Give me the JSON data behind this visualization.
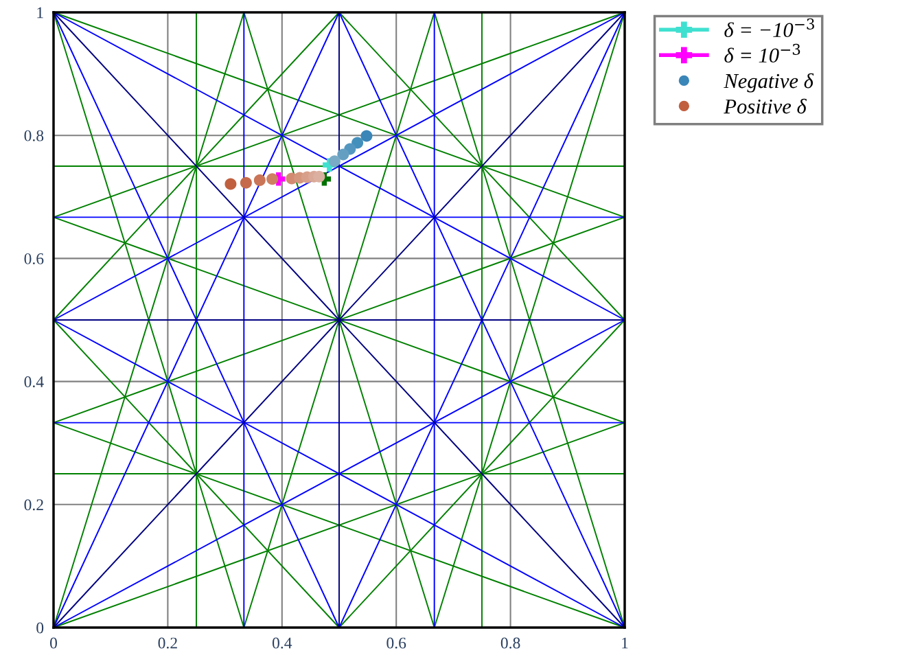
{
  "chart_data": {
    "type": "line",
    "xlim": [
      0,
      1
    ],
    "ylim": [
      0,
      1
    ],
    "xticks": [
      0,
      0.2,
      0.4,
      0.6,
      0.8,
      1
    ],
    "yticks": [
      0,
      0.2,
      0.4,
      0.6,
      0.8,
      1
    ],
    "grid": true,
    "legend": "right",
    "marker": "none",
    "series": [
      {
        "color": "#008000",
        "x": [
          0.25,
          0.25
        ],
        "values": [
          0,
          1
        ]
      },
      {
        "color": "#008000",
        "x": [
          0.75,
          0.75
        ],
        "values": [
          0,
          1
        ]
      },
      {
        "color": "#008000",
        "x": [
          0,
          1
        ],
        "values": [
          0.25,
          0.25
        ]
      },
      {
        "color": "#008000",
        "x": [
          0,
          1
        ],
        "values": [
          0.75,
          0.75
        ]
      },
      {
        "color": "#008000",
        "x": [
          0,
          0.3333
        ],
        "values": [
          0,
          1
        ]
      },
      {
        "color": "#008000",
        "x": [
          0,
          1
        ],
        "values": [
          0,
          0.333
        ]
      },
      {
        "color": "#008000",
        "x": [
          1,
          0.6667
        ],
        "values": [
          0,
          1
        ]
      },
      {
        "color": "#008000",
        "x": [
          1,
          0
        ],
        "values": [
          0,
          0.333
        ]
      },
      {
        "color": "#008000",
        "x": [
          0,
          0.3333
        ],
        "values": [
          1,
          0
        ]
      },
      {
        "color": "#008000",
        "x": [
          0,
          1
        ],
        "values": [
          1,
          0.667
        ]
      },
      {
        "color": "#008000",
        "x": [
          1,
          0.6667
        ],
        "values": [
          1,
          0
        ]
      },
      {
        "color": "#008000",
        "x": [
          1,
          0
        ],
        "values": [
          1,
          0.667
        ]
      },
      {
        "color": "#008000",
        "x": [
          0,
          0.5
        ],
        "values": [
          0.5,
          1
        ]
      },
      {
        "color": "#008000",
        "x": [
          0.5,
          1
        ],
        "values": [
          1,
          0.5
        ]
      },
      {
        "color": "#008000",
        "x": [
          1,
          0.5
        ],
        "values": [
          0.5,
          0
        ]
      },
      {
        "color": "#008000",
        "x": [
          0.5,
          0
        ],
        "values": [
          0,
          0.5
        ]
      },
      {
        "color": "#008000",
        "x": [
          0.3333,
          0.6667
        ],
        "values": [
          1,
          0
        ]
      },
      {
        "color": "#008000",
        "x": [
          0.6667,
          0.3333
        ],
        "values": [
          1,
          0
        ]
      },
      {
        "color": "#008000",
        "x": [
          0,
          1
        ],
        "values": [
          0.333,
          0.667
        ]
      },
      {
        "color": "#008000",
        "x": [
          0,
          1
        ],
        "values": [
          0.667,
          0.333
        ]
      },
      {
        "color": "#0000ff",
        "x": [
          0.3333,
          0.3333
        ],
        "values": [
          0,
          1
        ]
      },
      {
        "color": "#0000ff",
        "x": [
          0.6667,
          0.6667
        ],
        "values": [
          0,
          1
        ]
      },
      {
        "color": "#0000ff",
        "x": [
          0,
          1
        ],
        "values": [
          0.333,
          0.333
        ]
      },
      {
        "color": "#0000ff",
        "x": [
          0,
          1
        ],
        "values": [
          0.667,
          0.667
        ]
      },
      {
        "color": "#0000ff",
        "x": [
          0,
          0.5
        ],
        "values": [
          0,
          1
        ]
      },
      {
        "color": "#0000ff",
        "x": [
          0,
          1
        ],
        "values": [
          0,
          0.5
        ]
      },
      {
        "color": "#0000ff",
        "x": [
          0,
          0.5
        ],
        "values": [
          1,
          0
        ]
      },
      {
        "color": "#0000ff",
        "x": [
          0,
          1
        ],
        "values": [
          1,
          0.5
        ]
      },
      {
        "color": "#0000ff",
        "x": [
          1,
          0.5
        ],
        "values": [
          0,
          1
        ]
      },
      {
        "color": "#0000ff",
        "x": [
          1,
          0
        ],
        "values": [
          0,
          0.5
        ]
      },
      {
        "color": "#0000ff",
        "x": [
          1,
          0.5
        ],
        "values": [
          1,
          0
        ]
      },
      {
        "color": "#0000ff",
        "x": [
          1,
          0
        ],
        "values": [
          1,
          0.5
        ]
      },
      {
        "color": "#000080",
        "x": [
          0,
          1
        ],
        "values": [
          0,
          1
        ]
      },
      {
        "color": "#000080",
        "x": [
          0,
          1
        ],
        "values": [
          1,
          0
        ]
      },
      {
        "color": "#000080",
        "x": [
          0.5,
          0.5
        ],
        "values": [
          0,
          1
        ]
      },
      {
        "color": "#000080",
        "x": [
          0,
          1
        ],
        "values": [
          0.5,
          0.5
        ]
      },
      {
        "type": "line",
        "marker": "cross",
        "name": "δ = −10$^{−3}$",
        "color": "#40e0d0",
        "x": [
          0.483
        ],
        "values": [
          0.752
        ]
      },
      {
        "type": "line",
        "marker": "cross",
        "name": "δ = 10$^{−3}$",
        "color": "#ff00ff",
        "x": [
          0.394
        ],
        "values": [
          0.729
        ]
      },
      {
        "type": "scatter",
        "marker": "circle",
        "name": "Negative δ",
        "color": "#3a86b8",
        "x": [
          0.548,
          0.532,
          0.519,
          0.507,
          0.492
        ],
        "values": [
          0.799,
          0.788,
          0.778,
          0.769,
          0.758
        ],
        "colors": [
          "#3a86b8",
          "#4490bd",
          "#5397c0",
          "#649fc2",
          "#7aabc6"
        ]
      },
      {
        "type": "scatter",
        "marker": "circle",
        "name": "Positive δ",
        "color": "#c0603f",
        "x": [
          0.31,
          0.337,
          0.361,
          0.383,
          0.417,
          0.431,
          0.444,
          0.456,
          0.465
        ],
        "values": [
          0.721,
          0.723,
          0.727,
          0.729,
          0.73,
          0.731,
          0.732,
          0.733,
          0.733
        ],
        "colors": [
          "#c0603f",
          "#c56a4c",
          "#ca7557",
          "#ce8062",
          "#d28b70",
          "#d5967e",
          "#d8a08a",
          "#daa896",
          "#dcb0a0"
        ]
      },
      {
        "type": "line",
        "marker": "cross",
        "color": "#007000",
        "x": [
          0.474
        ],
        "values": [
          0.729
        ]
      }
    ]
  }
}
